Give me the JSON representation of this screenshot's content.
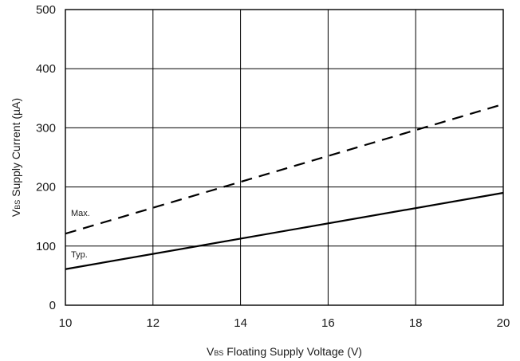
{
  "chart_data": {
    "type": "line",
    "x": [
      10,
      12,
      14,
      16,
      18,
      20
    ],
    "xlim": [
      10,
      20
    ],
    "ylim": [
      0,
      500
    ],
    "xticks": [
      "10",
      "12",
      "14",
      "16",
      "18",
      "20"
    ],
    "yticks": [
      "0",
      "100",
      "200",
      "300",
      "400",
      "500"
    ],
    "grid": true,
    "xlabel": {
      "prefix": "V",
      "subscript": "BS",
      "suffix": " Floating Supply Voltage (V)"
    },
    "ylabel": {
      "prefix": "V",
      "subscript": "BS",
      "suffix": " Supply Current (µA)"
    },
    "series": [
      {
        "name": "Max.",
        "style": "dashed",
        "color": "#000000",
        "x": [
          10,
          20
        ],
        "values": [
          121,
          340
        ]
      },
      {
        "name": "Typ.",
        "style": "solid",
        "color": "#000000",
        "x": [
          10,
          20
        ],
        "values": [
          61,
          190
        ]
      }
    ]
  }
}
